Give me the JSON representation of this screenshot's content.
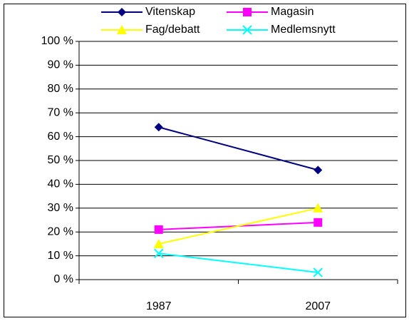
{
  "chart_data": {
    "type": "line",
    "categories": [
      "1987",
      "2007"
    ],
    "series": [
      {
        "name": "Vitenskap",
        "color": "#000080",
        "marker": "diamond",
        "values": [
          64,
          46
        ]
      },
      {
        "name": "Magasin",
        "color": "#ff00ff",
        "marker": "square",
        "values": [
          21,
          24
        ]
      },
      {
        "name": "Fag/debatt",
        "color": "#ffff00",
        "marker": "triangle",
        "values": [
          15,
          30
        ]
      },
      {
        "name": "Medlemsnytt",
        "color": "#00ffff",
        "marker": "x",
        "values": [
          11,
          3
        ]
      }
    ],
    "ylim": [
      0,
      100
    ],
    "yticks": [
      {
        "value": 0,
        "label": "0 %"
      },
      {
        "value": 10,
        "label": "10 %"
      },
      {
        "value": 20,
        "label": "20 %"
      },
      {
        "value": 30,
        "label": "30 %"
      },
      {
        "value": 40,
        "label": "40 %"
      },
      {
        "value": 50,
        "label": "50 %"
      },
      {
        "value": 60,
        "label": "60 %"
      },
      {
        "value": 70,
        "label": "70 %"
      },
      {
        "value": 80,
        "label": "80 %"
      },
      {
        "value": 90,
        "label": "90 %"
      },
      {
        "value": 100,
        "label": "100 %"
      }
    ],
    "grid": true,
    "legend": "top"
  }
}
